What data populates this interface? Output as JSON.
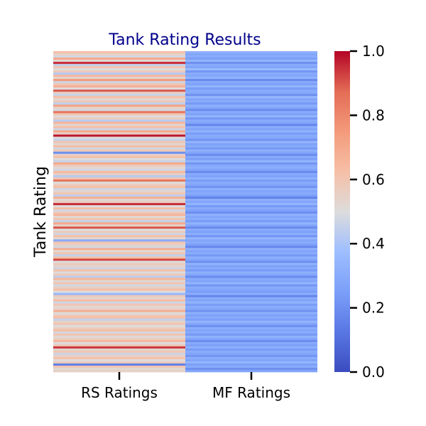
{
  "chart_data": {
    "type": "heatmap",
    "title": "Tank Rating Results",
    "ylabel": "Tank Rating",
    "xlabel": "",
    "columns": [
      "RS Ratings",
      "MF Ratings"
    ],
    "row_count": 150,
    "colormap": "coolwarm",
    "colorbar": {
      "range": [
        0.0,
        1.0
      ],
      "ticks": [
        "0.0",
        "0.2",
        "0.4",
        "0.6",
        "0.8",
        "1.0"
      ]
    },
    "series": [
      {
        "name": "RS Ratings",
        "values": [
          0.62,
          0.55,
          0.48,
          0.7,
          0.52,
          0.95,
          0.45,
          0.6,
          0.5,
          0.58,
          0.42,
          0.65,
          0.53,
          0.75,
          0.47,
          0.6,
          0.68,
          0.5,
          0.9,
          0.55,
          0.46,
          0.63,
          0.52,
          0.58,
          0.44,
          0.72,
          0.55,
          0.48,
          0.85,
          0.6,
          0.5,
          0.57,
          0.43,
          0.66,
          0.53,
          0.62,
          0.47,
          0.7,
          0.55,
          0.98,
          0.5,
          0.45,
          0.6,
          0.52,
          0.64,
          0.48,
          0.58,
          0.2,
          0.55,
          0.62,
          0.5,
          0.46,
          0.7,
          0.58,
          0.52,
          0.48,
          0.65,
          0.55,
          0.42,
          0.6,
          0.85,
          0.5,
          0.57,
          0.63,
          0.47,
          0.53,
          0.6,
          0.44,
          0.68,
          0.52,
          0.56,
          0.95,
          0.5,
          0.62,
          0.48,
          0.58,
          0.66,
          0.52,
          0.6,
          0.45,
          0.7,
          0.55,
          0.9,
          0.5,
          0.58,
          0.47,
          0.62,
          0.53,
          0.3,
          0.6,
          0.55,
          0.48,
          0.68,
          0.52,
          0.6,
          0.45,
          0.63,
          0.92,
          0.5,
          0.57,
          0.54,
          0.47,
          0.62,
          0.5,
          0.58,
          0.44,
          0.66,
          0.52,
          0.6,
          0.48,
          0.56,
          0.62,
          0.5,
          0.35,
          0.58,
          0.53,
          0.64,
          0.47,
          0.6,
          0.52,
          0.55,
          0.68,
          0.5,
          0.58,
          0.62,
          0.45,
          0.55,
          0.6,
          0.5,
          0.57,
          0.63,
          0.48,
          0.6,
          0.52,
          0.56,
          0.65,
          0.5,
          0.58,
          0.94,
          0.53,
          0.6,
          0.47,
          0.55,
          0.62,
          0.5,
          0.58,
          0.15,
          0.6,
          0.52,
          0.55
        ],
        "bound_text": "RS Ratings"
      },
      {
        "name": "MF Ratings",
        "values": [
          0.32,
          0.28,
          0.3,
          0.25,
          0.34,
          0.2,
          0.3,
          0.27,
          0.36,
          0.22,
          0.3,
          0.28,
          0.33,
          0.18,
          0.3,
          0.26,
          0.34,
          0.24,
          0.3,
          0.29,
          0.2,
          0.35,
          0.27,
          0.3,
          0.23,
          0.32,
          0.28,
          0.19,
          0.3,
          0.26,
          0.34,
          0.22,
          0.3,
          0.28,
          0.17,
          0.31,
          0.27,
          0.33,
          0.24,
          0.3,
          0.28,
          0.21,
          0.34,
          0.26,
          0.3,
          0.23,
          0.32,
          0.28,
          0.19,
          0.3,
          0.25,
          0.34,
          0.22,
          0.29,
          0.31,
          0.27,
          0.18,
          0.3,
          0.26,
          0.33,
          0.24,
          0.3,
          0.28,
          0.21,
          0.32,
          0.27,
          0.3,
          0.25,
          0.16,
          0.31,
          0.28,
          0.34,
          0.23,
          0.3,
          0.26,
          0.2,
          0.32,
          0.28,
          0.3,
          0.24,
          0.33,
          0.27,
          0.19,
          0.3,
          0.26,
          0.31,
          0.22,
          0.34,
          0.28,
          0.3,
          0.25,
          0.18,
          0.32,
          0.27,
          0.3,
          0.23,
          0.31,
          0.28,
          0.2,
          0.33,
          0.26,
          0.3,
          0.24,
          0.32,
          0.28,
          0.19,
          0.3,
          0.27,
          0.34,
          0.22,
          0.3,
          0.28,
          0.25,
          0.31,
          0.17,
          0.3,
          0.27,
          0.33,
          0.24,
          0.3,
          0.28,
          0.21,
          0.32,
          0.26,
          0.3,
          0.25,
          0.34,
          0.28,
          0.2,
          0.31,
          0.27,
          0.3,
          0.23,
          0.33,
          0.28,
          0.19,
          0.3,
          0.26,
          0.32,
          0.24,
          0.3,
          0.28,
          0.22,
          0.31,
          0.27,
          0.34,
          0.25,
          0.3,
          0.2,
          0.28
        ],
        "bound_text": "MF Ratings"
      }
    ]
  }
}
